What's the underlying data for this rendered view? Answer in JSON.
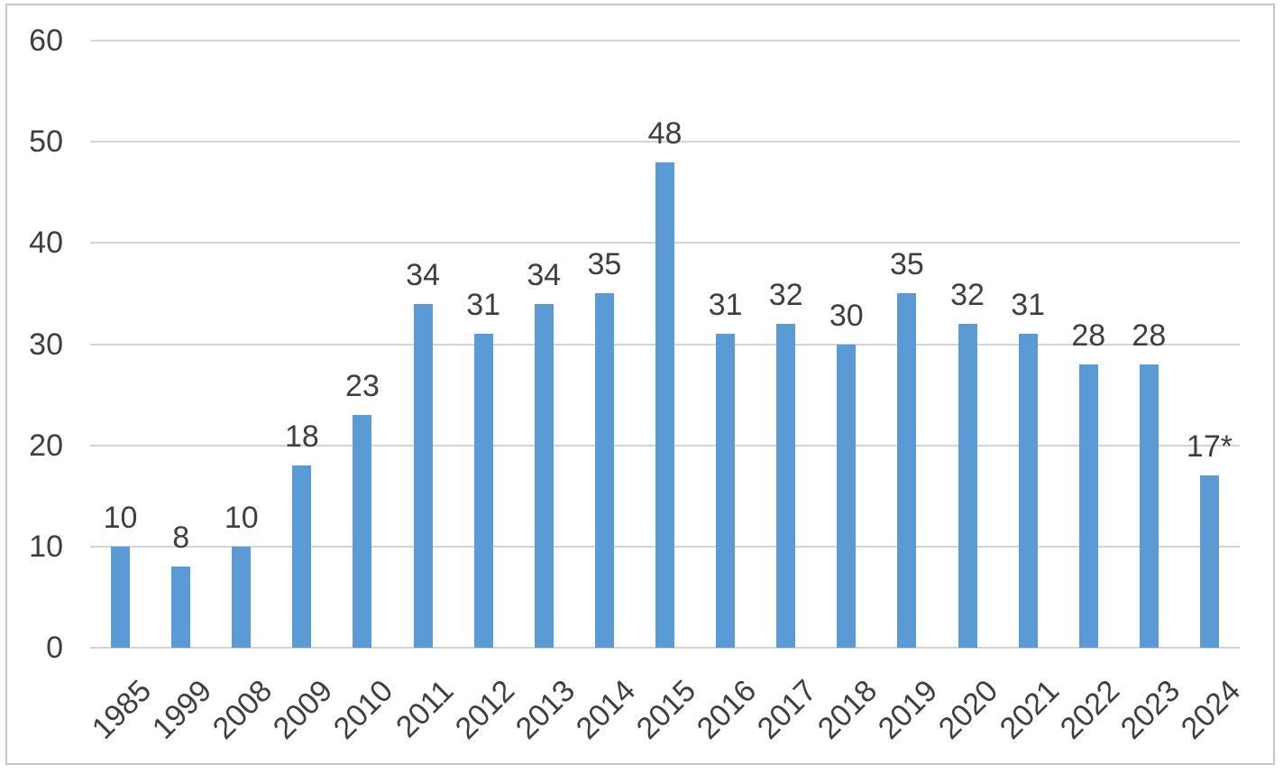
{
  "chart_data": {
    "type": "bar",
    "title": "",
    "xlabel": "",
    "ylabel": "",
    "categories": [
      "1985",
      "1999",
      "2008",
      "2009",
      "2010",
      "2011",
      "2012",
      "2013",
      "2014",
      "2015",
      "2016",
      "2017",
      "2018",
      "2019",
      "2020",
      "2021",
      "2022",
      "2023",
      "2024"
    ],
    "values": [
      10,
      8,
      10,
      18,
      23,
      34,
      31,
      34,
      35,
      48,
      31,
      32,
      30,
      35,
      32,
      31,
      28,
      28,
      17
    ],
    "data_labels": [
      "10",
      "8",
      "10",
      "18",
      "23",
      "34",
      "31",
      "34",
      "35",
      "48",
      "31",
      "32",
      "30",
      "35",
      "32",
      "31",
      "28",
      "28",
      "17*"
    ],
    "ylim": [
      0,
      60
    ],
    "y_ticks": [
      60,
      50,
      40,
      30,
      20,
      10,
      0
    ],
    "grid": "horizontal",
    "legend": "none",
    "footnote_marker_on_last_bar": "*",
    "bar_color": "#5B9BD5",
    "gridline_color": "#D4D4D4",
    "text_color": "#3F3F3F",
    "frame_border_color": "#C7C7C7",
    "background_color": "#FFFFFF"
  }
}
